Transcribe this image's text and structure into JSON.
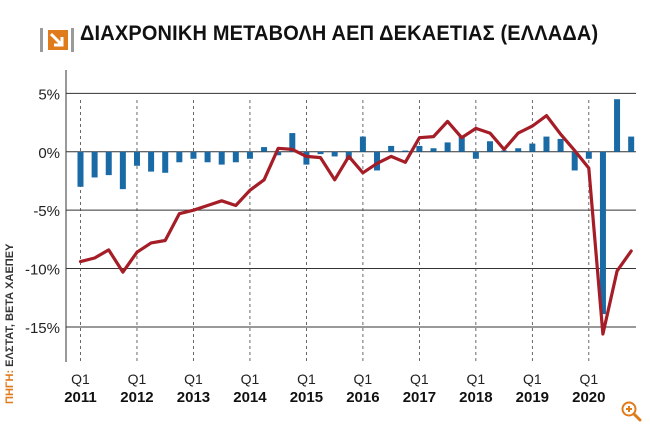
{
  "header": {
    "title": "ΔΙΑΧΡΟΝΙΚΗ ΜΕΤΑΒΟΛΗ ΑΕΠ ΔΕΚΑΕΤΙΑΣ (ΕΛΛΑΔΑ)",
    "brand_icon": "arrow-logo-icon"
  },
  "source": {
    "label": "ΠΗΓΗ:",
    "text": " ΕΛΣΤΑΤ, ΒΕΤΑ ΧΑΕΠΕΥ"
  },
  "zoom_icon": "zoom-icon",
  "colors": {
    "bars": "#1a6aa6",
    "line": "#a51d26",
    "accent": "#e07b1c",
    "grid": "#333333"
  },
  "chart_data": {
    "type": "bar",
    "title": "ΔΙΑΧΡΟΝΙΚΗ ΜΕΤΑΒΟΛΗ ΑΕΠ ΔΕΚΑΕΤΙΑΣ (ΕΛΛΑΔΑ)",
    "xlabel": "",
    "ylabel": "",
    "ylim": [
      -18,
      7
    ],
    "y_ticks": [
      5,
      0,
      -5,
      -10,
      -15
    ],
    "y_tick_labels": [
      "5%",
      "0%",
      "-5%",
      "-10%",
      "-15%"
    ],
    "grid": "horizontal",
    "x_tick_labels": [
      {
        "quarter": "Q1",
        "year": "2011"
      },
      {
        "quarter": "Q1",
        "year": "2012"
      },
      {
        "quarter": "Q1",
        "year": "2013"
      },
      {
        "quarter": "Q1",
        "year": "2014"
      },
      {
        "quarter": "Q1",
        "year": "2015"
      },
      {
        "quarter": "Q1",
        "year": "2016"
      },
      {
        "quarter": "Q1",
        "year": "2017"
      },
      {
        "quarter": "Q1",
        "year": "2018"
      },
      {
        "quarter": "Q1",
        "year": "2019"
      },
      {
        "quarter": "Q1",
        "year": "2020"
      }
    ],
    "categories": [
      "Q1 2011",
      "Q2 2011",
      "Q3 2011",
      "Q4 2011",
      "Q1 2012",
      "Q2 2012",
      "Q3 2012",
      "Q4 2012",
      "Q1 2013",
      "Q2 2013",
      "Q3 2013",
      "Q4 2013",
      "Q1 2014",
      "Q2 2014",
      "Q3 2014",
      "Q4 2014",
      "Q1 2015",
      "Q2 2015",
      "Q3 2015",
      "Q4 2015",
      "Q1 2016",
      "Q2 2016",
      "Q3 2016",
      "Q4 2016",
      "Q1 2017",
      "Q2 2017",
      "Q3 2017",
      "Q4 2017",
      "Q1 2018",
      "Q2 2018",
      "Q3 2018",
      "Q4 2018",
      "Q1 2019",
      "Q2 2019",
      "Q3 2019",
      "Q4 2019",
      "Q1 2020",
      "Q2 2020",
      "Q3 2020",
      "Q4 2020"
    ],
    "series": [
      {
        "type": "bar",
        "values": [
          -3.0,
          -2.2,
          -2.0,
          -3.2,
          -1.2,
          -1.7,
          -1.8,
          -0.9,
          -0.6,
          -0.9,
          -1.1,
          -0.9,
          -0.6,
          0.4,
          -0.3,
          1.6,
          -1.1,
          -0.2,
          -0.4,
          -0.7,
          1.3,
          -1.6,
          0.5,
          0.1,
          0.5,
          0.3,
          0.8,
          1.4,
          -0.6,
          0.9,
          0.1,
          0.3,
          0.7,
          1.3,
          1.1,
          -1.6,
          -0.6,
          -13.9,
          4.5,
          1.3
        ]
      },
      {
        "type": "line",
        "values": [
          -9.4,
          -9.1,
          -8.4,
          -10.3,
          -8.6,
          -7.8,
          -7.6,
          -5.3,
          -5.0,
          -4.6,
          -4.2,
          -4.6,
          -3.3,
          -2.4,
          0.3,
          0.2,
          -0.4,
          -0.5,
          -2.4,
          -0.4,
          -1.8,
          -1.0,
          -0.4,
          -0.9,
          1.2,
          1.3,
          2.6,
          1.2,
          2.0,
          1.6,
          0.2,
          1.6,
          2.2,
          3.1,
          1.5,
          0.1,
          -1.4,
          -15.6,
          -10.2,
          -8.5
        ]
      }
    ]
  }
}
